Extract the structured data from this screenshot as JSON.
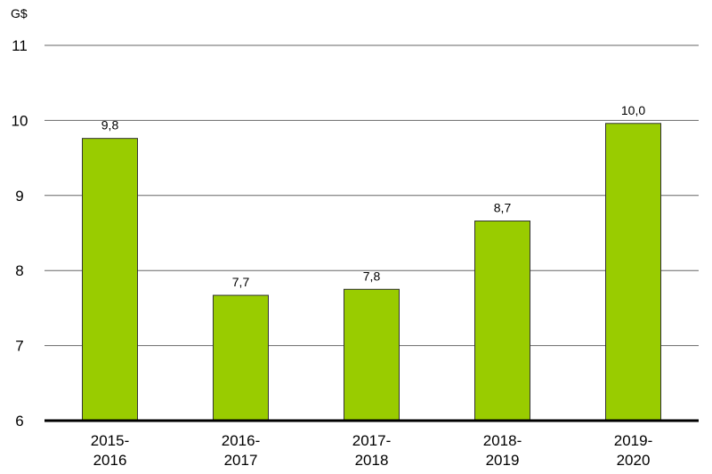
{
  "chart_data": {
    "type": "bar",
    "y_label": "G$",
    "categories": [
      "2015-\n2016",
      "2016-\n2017",
      "2017-\n2018",
      "2018-\n2019",
      "2019-\n2020"
    ],
    "values": [
      9.76,
      7.67,
      7.75,
      8.66,
      9.96
    ],
    "value_labels": [
      "9,8",
      "7,7",
      "7,8",
      "8,7",
      "10,0"
    ],
    "color": "#99cc00",
    "ylim": [
      6,
      11
    ],
    "yticks": [
      6,
      7,
      8,
      9,
      10,
      11
    ],
    "grid": true
  }
}
